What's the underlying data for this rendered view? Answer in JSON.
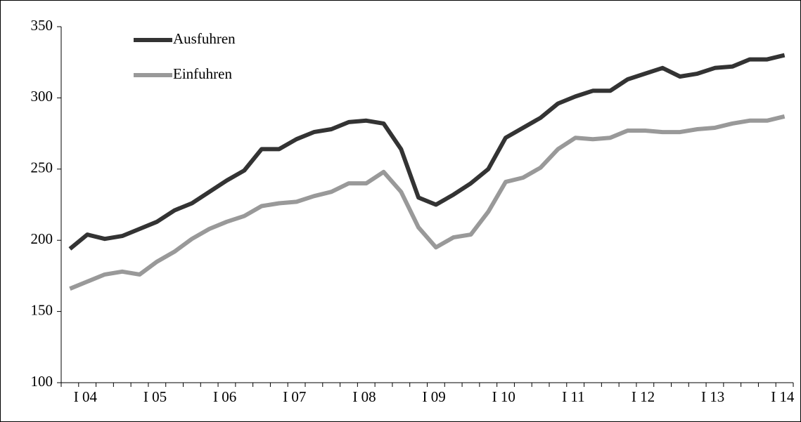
{
  "chart_data": {
    "type": "line",
    "categories": [
      "I 04",
      null,
      null,
      null,
      "I 05",
      null,
      null,
      null,
      "I 06",
      null,
      null,
      null,
      "I 07",
      null,
      null,
      null,
      "I 08",
      null,
      null,
      null,
      "I 09",
      null,
      null,
      null,
      "I 10",
      null,
      null,
      null,
      "I 11",
      null,
      null,
      null,
      "I 12",
      null,
      null,
      null,
      "I 13",
      null,
      null,
      null,
      "I 14",
      null
    ],
    "series": [
      {
        "name": "Ausfuhren",
        "color": "#333333",
        "values": [
          194,
          204,
          201,
          203,
          208,
          213,
          221,
          226,
          234,
          242,
          249,
          264,
          264,
          271,
          276,
          278,
          283,
          284,
          282,
          264,
          230,
          225,
          232,
          240,
          250,
          272,
          279,
          286,
          296,
          301,
          305,
          305,
          313,
          317,
          321,
          315,
          317,
          321,
          322,
          327,
          327,
          330
        ]
      },
      {
        "name": "Einfuhren",
        "color": "#999999",
        "values": [
          166,
          171,
          176,
          178,
          176,
          185,
          192,
          201,
          208,
          213,
          217,
          224,
          226,
          227,
          231,
          234,
          240,
          240,
          248,
          234,
          209,
          195,
          202,
          204,
          220,
          241,
          244,
          251,
          264,
          272,
          271,
          272,
          277,
          277,
          276,
          276,
          278,
          279,
          282,
          284,
          284,
          287
        ]
      }
    ],
    "ylim": [
      100,
      350
    ],
    "yticks": [
      100,
      150,
      200,
      250,
      300,
      350
    ],
    "grid": false,
    "legend": "top-left"
  }
}
